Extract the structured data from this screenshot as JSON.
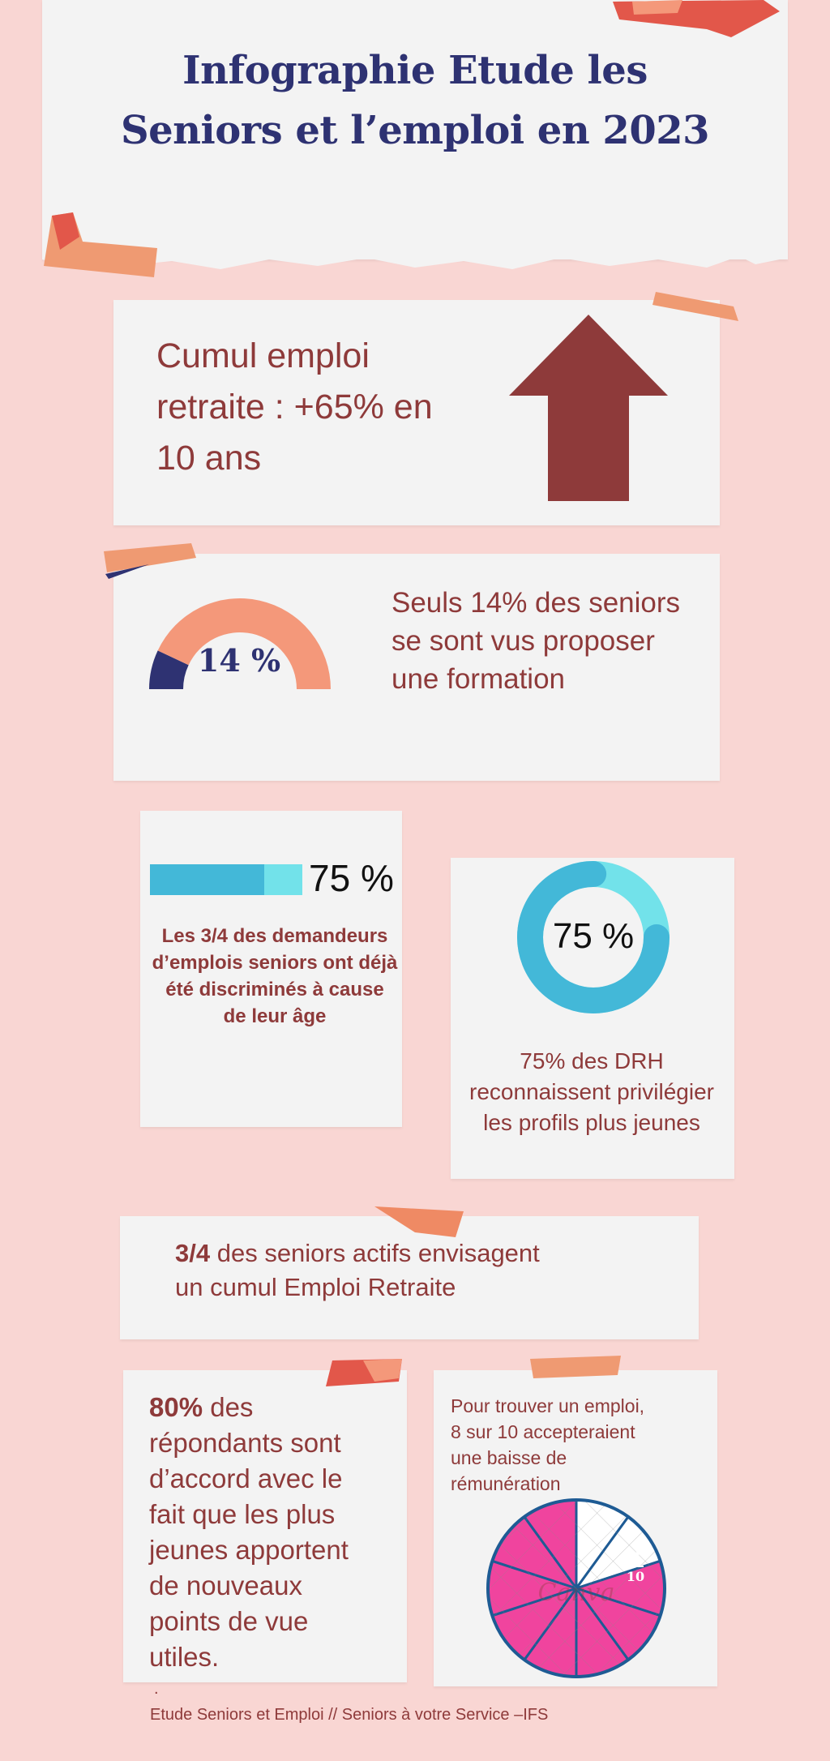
{
  "title": {
    "line1": "Infographie Etude les",
    "line2": "Seniors et l’emploi en 2023"
  },
  "cumul": {
    "line1": "Cumul emploi",
    "line2": "retraite : +65% en",
    "line3": "10 ans",
    "icon": "arrow-up-icon"
  },
  "formation": {
    "gauge_value": 14,
    "gauge_label": "14 %",
    "line1": "Seuls 14% des seniors",
    "line2": "se sont vus proposer",
    "line3": "une formation"
  },
  "discrimination": {
    "bar_value": 75,
    "bar_label": "75 %",
    "line1": "Les 3/4 des demandeurs",
    "line2": "d’emplois seniors ont déjà",
    "line3": "été discriminés à cause",
    "line4": "de leur âge"
  },
  "drh": {
    "donut_value": 75,
    "donut_label": "75 %",
    "line1": "75% des DRH",
    "line2": "reconnaissent privilégier",
    "line3": "les profils plus jeunes"
  },
  "envisage": {
    "strong": "3/4",
    "rest1": " des seniors actifs envisagent",
    "line2": "un cumul Emploi Retraite"
  },
  "eighty": {
    "strong": "80%",
    "rest": " des",
    "line2": "répondants sont",
    "line3": "d’accord avec le",
    "line4": "fait que les plus",
    "line5": "jeunes apportent",
    "line6": "de nouveaux",
    "line7": "points de vue",
    "line8": "utiles."
  },
  "remuneration": {
    "line1": " Pour trouver un emploi,",
    "line2": "8 sur 10 accepteraient",
    "line3": "une baisse de",
    "line4": "rémunération",
    "pie_value": 8,
    "pie_total": 10,
    "pie_num": "8",
    "pie_den": "10",
    "pie_watermark": "Canva"
  },
  "footer": {
    "dot": ".",
    "text": "Etude Seniors et Emploi // Seniors à votre Service –IFS"
  },
  "colors": {
    "background": "#f9d6d3",
    "paper": "#f3f3f3",
    "navy": "#2e3272",
    "maroon": "#8e3a3a",
    "salmon": "#f4987a",
    "cyan": "#43b8d8",
    "light_cyan": "#72e2ea",
    "pink": "#f0449e",
    "pie_border": "#1e5b94"
  }
}
